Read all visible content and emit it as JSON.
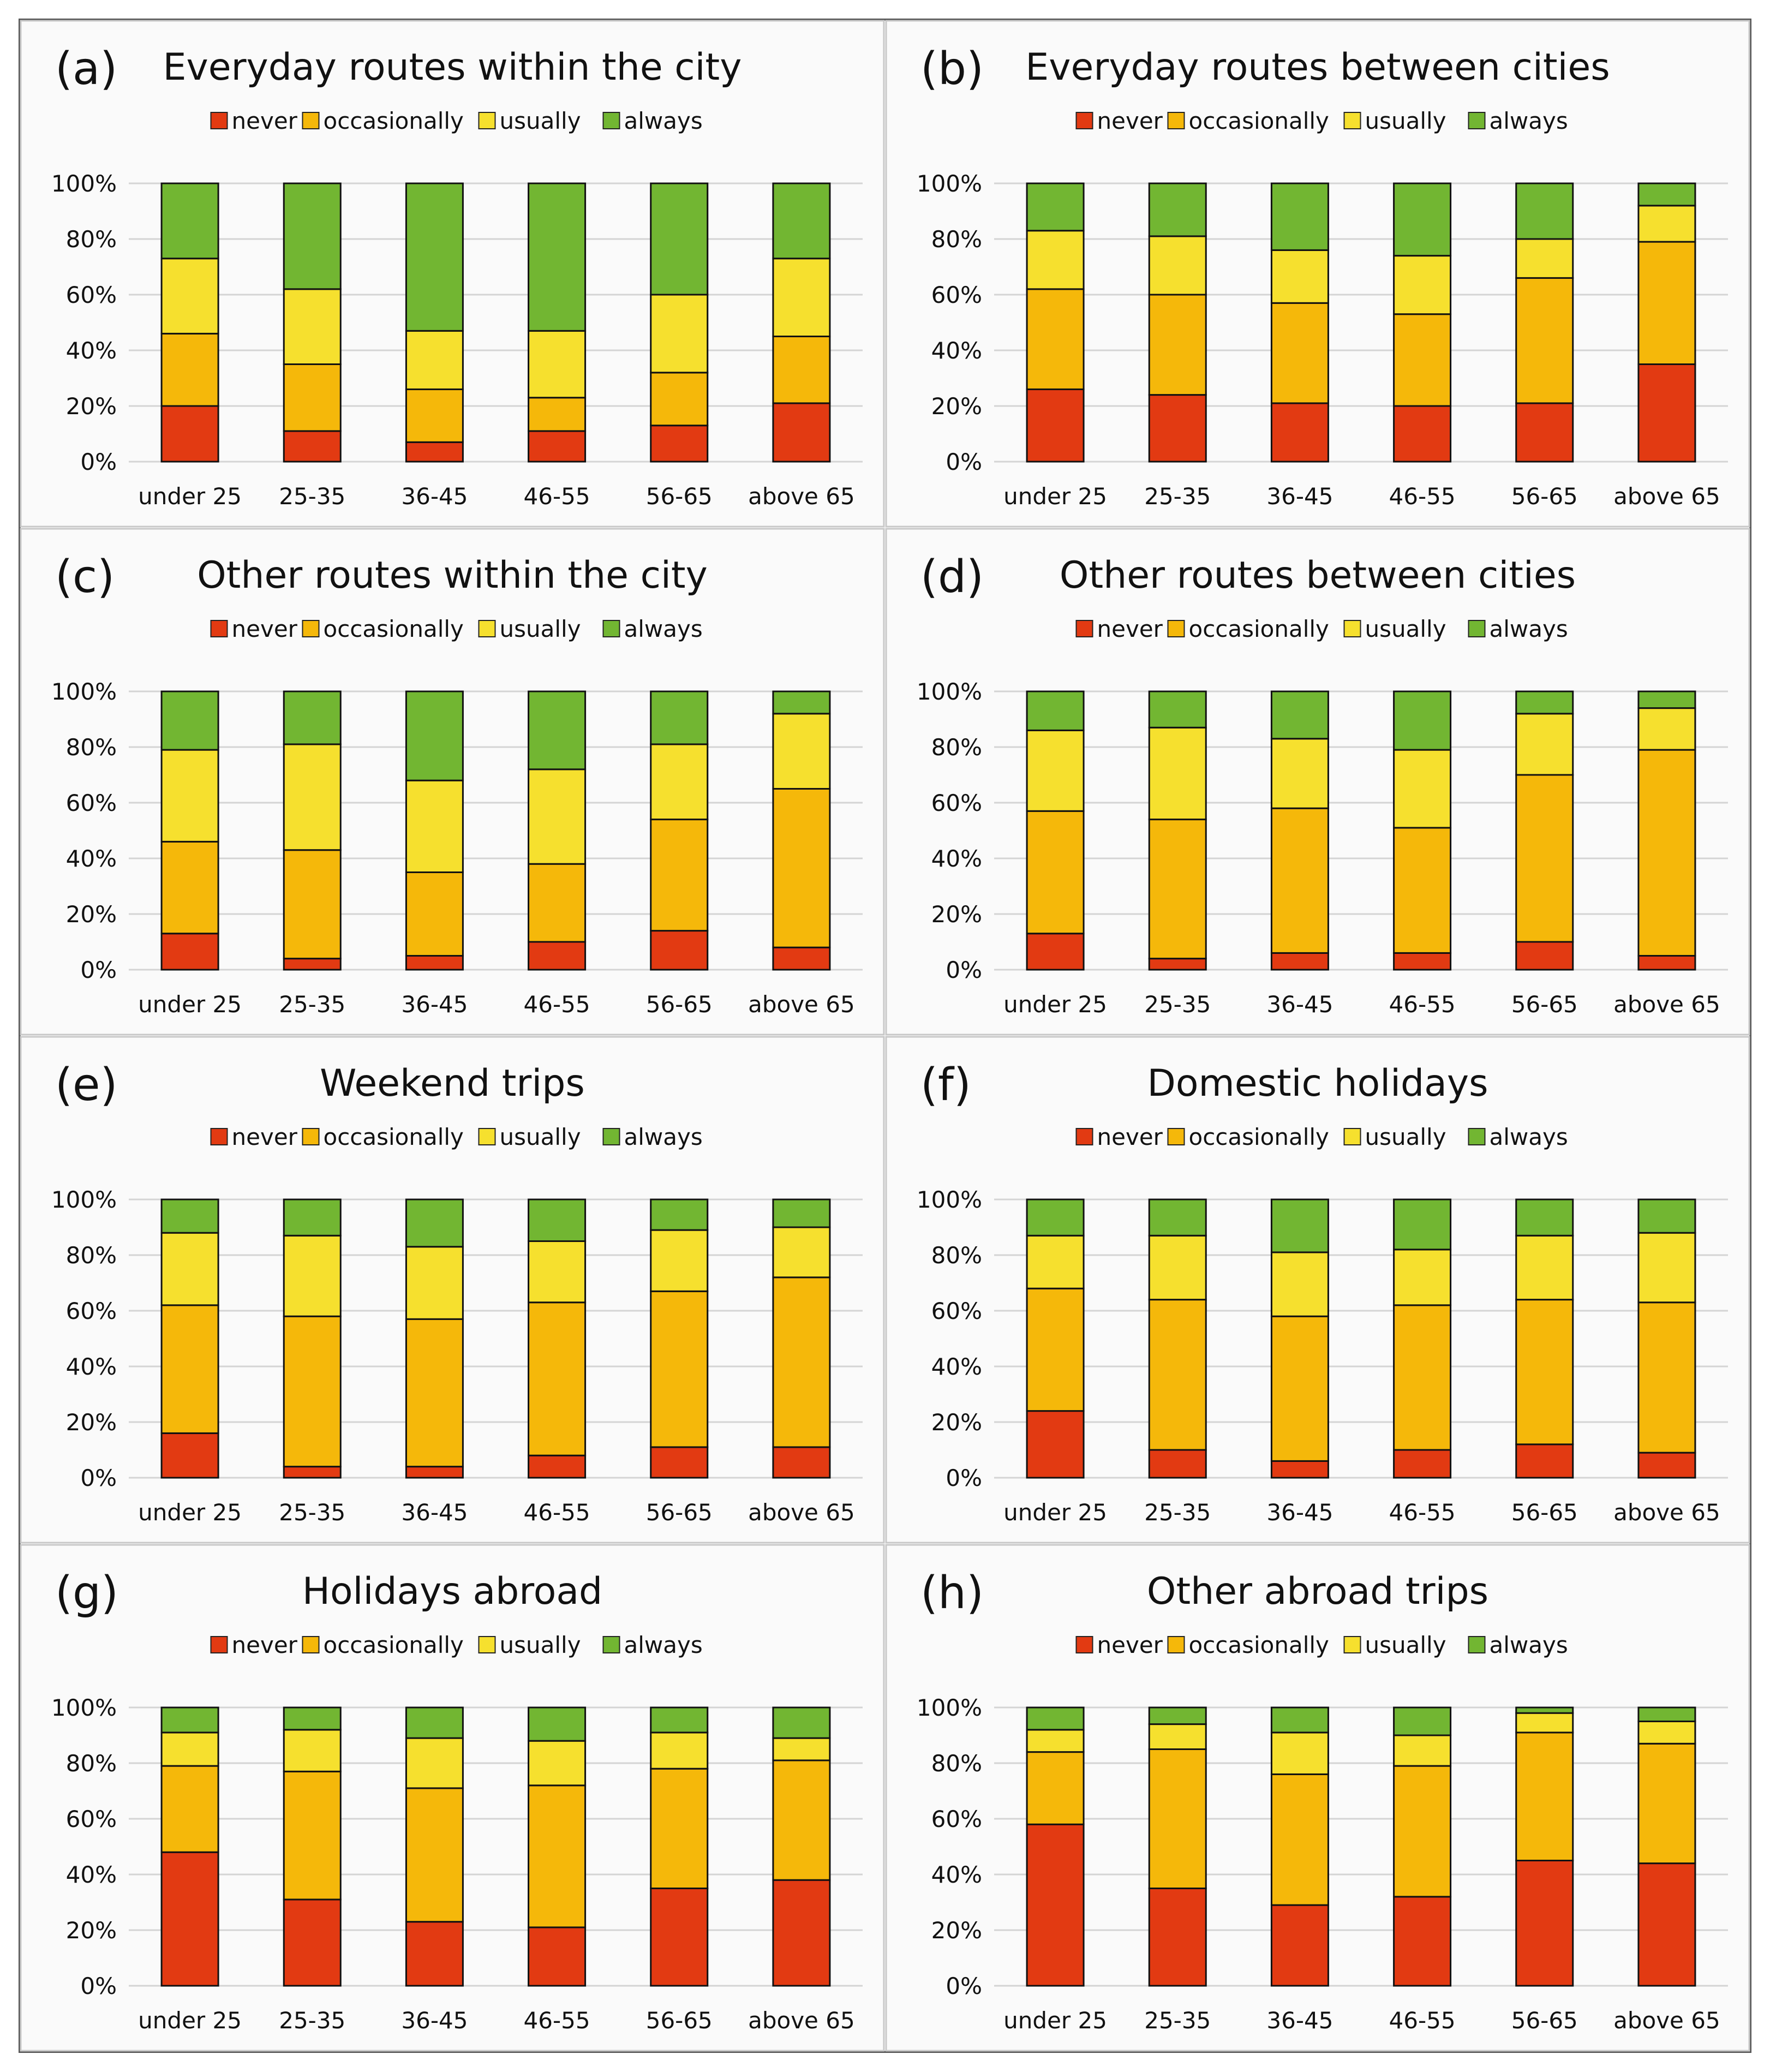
{
  "colors": {
    "never": "#e23a12",
    "occasionally": "#f5b80a",
    "usually": "#f6e02e",
    "always": "#72b632",
    "grid": "#d4d4d4",
    "panel_bg": "#fafafa"
  },
  "chart_data": [
    {
      "type": "bar",
      "stacked": true,
      "panel_label": "(a)",
      "title": "Everyday routes within the city",
      "categories": [
        "under 25",
        "25-35",
        "36-45",
        "46-55",
        "56-65",
        "above 65"
      ],
      "legend": [
        "never",
        "occasionally",
        "usually",
        "always"
      ],
      "ylim": [
        0,
        100
      ],
      "yticks": [
        "0%",
        "20%",
        "40%",
        "60%",
        "80%",
        "100%"
      ],
      "series": [
        {
          "name": "never",
          "values": [
            20,
            11,
            7,
            11,
            13,
            21
          ]
        },
        {
          "name": "occasionally",
          "values": [
            26,
            24,
            19,
            12,
            19,
            24
          ]
        },
        {
          "name": "usually",
          "values": [
            27,
            27,
            21,
            24,
            28,
            28
          ]
        },
        {
          "name": "always",
          "values": [
            27,
            38,
            53,
            53,
            40,
            27
          ]
        }
      ]
    },
    {
      "type": "bar",
      "stacked": true,
      "panel_label": "(b)",
      "title": "Everyday routes between cities",
      "categories": [
        "under 25",
        "25-35",
        "36-45",
        "46-55",
        "56-65",
        "above 65"
      ],
      "legend": [
        "never",
        "occasionally",
        "usually",
        "always"
      ],
      "ylim": [
        0,
        100
      ],
      "yticks": [
        "0%",
        "20%",
        "40%",
        "60%",
        "80%",
        "100%"
      ],
      "series": [
        {
          "name": "never",
          "values": [
            26,
            24,
            21,
            20,
            21,
            35
          ]
        },
        {
          "name": "occasionally",
          "values": [
            36,
            36,
            36,
            33,
            45,
            44
          ]
        },
        {
          "name": "usually",
          "values": [
            21,
            21,
            19,
            21,
            14,
            13
          ]
        },
        {
          "name": "always",
          "values": [
            17,
            19,
            24,
            26,
            20,
            8
          ]
        }
      ]
    },
    {
      "type": "bar",
      "stacked": true,
      "panel_label": "(c)",
      "title": "Other routes within the city",
      "categories": [
        "under 25",
        "25-35",
        "36-45",
        "46-55",
        "56-65",
        "above 65"
      ],
      "legend": [
        "never",
        "occasionally",
        "usually",
        "always"
      ],
      "ylim": [
        0,
        100
      ],
      "yticks": [
        "0%",
        "20%",
        "40%",
        "60%",
        "80%",
        "100%"
      ],
      "series": [
        {
          "name": "never",
          "values": [
            13,
            4,
            5,
            10,
            14,
            8
          ]
        },
        {
          "name": "occasionally",
          "values": [
            33,
            39,
            30,
            28,
            40,
            57
          ]
        },
        {
          "name": "usually",
          "values": [
            33,
            38,
            33,
            34,
            27,
            27
          ]
        },
        {
          "name": "always",
          "values": [
            21,
            19,
            32,
            28,
            19,
            8
          ]
        }
      ]
    },
    {
      "type": "bar",
      "stacked": true,
      "panel_label": "(d)",
      "title": "Other routes between cities",
      "categories": [
        "under 25",
        "25-35",
        "36-45",
        "46-55",
        "56-65",
        "above 65"
      ],
      "legend": [
        "never",
        "occasionally",
        "usually",
        "always"
      ],
      "ylim": [
        0,
        100
      ],
      "yticks": [
        "0%",
        "20%",
        "40%",
        "60%",
        "80%",
        "100%"
      ],
      "series": [
        {
          "name": "never",
          "values": [
            13,
            4,
            6,
            6,
            10,
            5
          ]
        },
        {
          "name": "occasionally",
          "values": [
            44,
            50,
            52,
            45,
            60,
            74
          ]
        },
        {
          "name": "usually",
          "values": [
            29,
            33,
            25,
            28,
            22,
            15
          ]
        },
        {
          "name": "always",
          "values": [
            14,
            13,
            17,
            21,
            8,
            6
          ]
        }
      ]
    },
    {
      "type": "bar",
      "stacked": true,
      "panel_label": "(e)",
      "title": "Weekend trips",
      "categories": [
        "under 25",
        "25-35",
        "36-45",
        "46-55",
        "56-65",
        "above 65"
      ],
      "legend": [
        "never",
        "occasionally",
        "usually",
        "always"
      ],
      "ylim": [
        0,
        100
      ],
      "yticks": [
        "0%",
        "20%",
        "40%",
        "60%",
        "80%",
        "100%"
      ],
      "series": [
        {
          "name": "never",
          "values": [
            16,
            4,
            4,
            8,
            11,
            11
          ]
        },
        {
          "name": "occasionally",
          "values": [
            46,
            54,
            53,
            55,
            56,
            61
          ]
        },
        {
          "name": "usually",
          "values": [
            26,
            29,
            26,
            22,
            22,
            18
          ]
        },
        {
          "name": "always",
          "values": [
            12,
            13,
            17,
            15,
            11,
            10
          ]
        }
      ]
    },
    {
      "type": "bar",
      "stacked": true,
      "panel_label": "(f)",
      "title": "Domestic holidays",
      "categories": [
        "under 25",
        "25-35",
        "36-45",
        "46-55",
        "56-65",
        "above 65"
      ],
      "legend": [
        "never",
        "occasionally",
        "usually",
        "always"
      ],
      "ylim": [
        0,
        100
      ],
      "yticks": [
        "0%",
        "20%",
        "40%",
        "60%",
        "80%",
        "100%"
      ],
      "series": [
        {
          "name": "never",
          "values": [
            24,
            10,
            6,
            10,
            12,
            9
          ]
        },
        {
          "name": "occasionally",
          "values": [
            44,
            54,
            52,
            52,
            52,
            54
          ]
        },
        {
          "name": "usually",
          "values": [
            19,
            23,
            23,
            20,
            23,
            25
          ]
        },
        {
          "name": "always",
          "values": [
            13,
            13,
            19,
            18,
            13,
            12
          ]
        }
      ]
    },
    {
      "type": "bar",
      "stacked": true,
      "panel_label": "(g)",
      "title": "Holidays abroad",
      "categories": [
        "under 25",
        "25-35",
        "36-45",
        "46-55",
        "56-65",
        "above 65"
      ],
      "legend": [
        "never",
        "occasionally",
        "usually",
        "always"
      ],
      "ylim": [
        0,
        100
      ],
      "yticks": [
        "0%",
        "20%",
        "40%",
        "60%",
        "80%",
        "100%"
      ],
      "series": [
        {
          "name": "never",
          "values": [
            48,
            31,
            23,
            21,
            35,
            38
          ]
        },
        {
          "name": "occasionally",
          "values": [
            31,
            46,
            48,
            51,
            43,
            43
          ]
        },
        {
          "name": "usually",
          "values": [
            12,
            15,
            18,
            16,
            13,
            8
          ]
        },
        {
          "name": "always",
          "values": [
            9,
            8,
            11,
            12,
            9,
            11
          ]
        }
      ]
    },
    {
      "type": "bar",
      "stacked": true,
      "panel_label": "(h)",
      "title": "Other abroad trips",
      "categories": [
        "under 25",
        "25-35",
        "36-45",
        "46-55",
        "56-65",
        "above 65"
      ],
      "legend": [
        "never",
        "occasionally",
        "usually",
        "always"
      ],
      "ylim": [
        0,
        100
      ],
      "yticks": [
        "0%",
        "20%",
        "40%",
        "60%",
        "80%",
        "100%"
      ],
      "series": [
        {
          "name": "never",
          "values": [
            58,
            35,
            29,
            32,
            45,
            44
          ]
        },
        {
          "name": "occasionally",
          "values": [
            26,
            50,
            47,
            47,
            46,
            43
          ]
        },
        {
          "name": "usually",
          "values": [
            8,
            9,
            15,
            11,
            7,
            8
          ]
        },
        {
          "name": "always",
          "values": [
            8,
            6,
            9,
            10,
            2,
            5
          ]
        }
      ]
    }
  ]
}
